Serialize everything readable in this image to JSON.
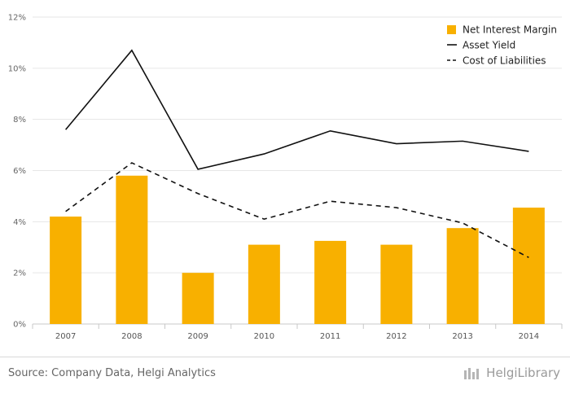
{
  "chart_data": {
    "type": "bar",
    "categories": [
      "2007",
      "2008",
      "2009",
      "2010",
      "2011",
      "2012",
      "2013",
      "2014"
    ],
    "series": [
      {
        "name": "Net Interest Margin",
        "type": "bar",
        "color": "#f8b000",
        "values": [
          4.2,
          5.8,
          2.0,
          3.1,
          3.25,
          3.1,
          3.75,
          4.55
        ]
      },
      {
        "name": "Asset Yield",
        "type": "line",
        "style": "solid",
        "color": "#111111",
        "values": [
          7.6,
          10.7,
          6.05,
          6.65,
          7.55,
          7.05,
          7.15,
          6.75
        ]
      },
      {
        "name": "Cost of Liabilities",
        "type": "line",
        "style": "dashed",
        "color": "#111111",
        "values": [
          4.4,
          6.3,
          5.1,
          4.1,
          4.8,
          4.55,
          3.95,
          2.6
        ]
      }
    ],
    "yticks": [
      "0%",
      "2%",
      "4%",
      "6%",
      "8%",
      "10%",
      "12%"
    ],
    "ylim": [
      0,
      12
    ],
    "grid": true,
    "legend": "top-right"
  },
  "footer": {
    "source": "Source: Company Data, Helgi Analytics",
    "brand": "HelgiLibrary"
  }
}
